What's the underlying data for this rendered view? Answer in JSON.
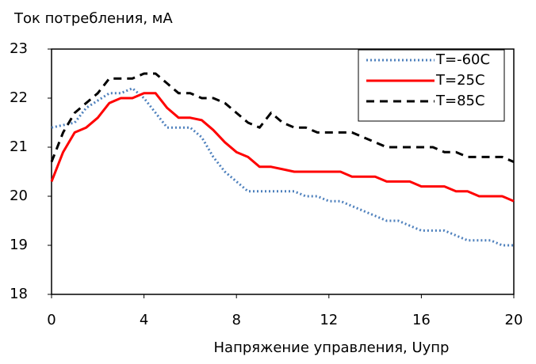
{
  "chart_data": {
    "type": "line",
    "title": "Ток потребления, мА",
    "x_label": "Напряжение управления, Uупр",
    "x": [
      0,
      0.5,
      1,
      1.5,
      2,
      2.5,
      3,
      3.5,
      4,
      4.5,
      5,
      5.5,
      6,
      6.5,
      7,
      7.5,
      8,
      8.5,
      9,
      9.5,
      10,
      10.5,
      11,
      11.5,
      12,
      12.5,
      13,
      13.5,
      14,
      14.5,
      15,
      15.5,
      16,
      16.5,
      17,
      17.5,
      18,
      18.5,
      19,
      19.5,
      20
    ],
    "series": [
      {
        "name": "T=-60C",
        "color": "#4f81bd",
        "dash": "dotted",
        "values": [
          21.4,
          21.45,
          21.5,
          21.8,
          21.95,
          22.1,
          22.1,
          22.2,
          22.0,
          21.7,
          21.4,
          21.4,
          21.4,
          21.2,
          20.8,
          20.5,
          20.3,
          20.1,
          20.1,
          20.1,
          20.1,
          20.1,
          20.0,
          20.0,
          19.9,
          19.9,
          19.8,
          19.7,
          19.6,
          19.5,
          19.5,
          19.4,
          19.3,
          19.3,
          19.3,
          19.2,
          19.1,
          19.1,
          19.1,
          19.0,
          19.0
        ]
      },
      {
        "name": "T=25C",
        "color": "#ff0000",
        "dash": "solid",
        "values": [
          20.3,
          20.9,
          21.3,
          21.4,
          21.6,
          21.9,
          22.0,
          22.0,
          22.1,
          22.1,
          21.8,
          21.6,
          21.6,
          21.55,
          21.35,
          21.1,
          20.9,
          20.8,
          20.6,
          20.6,
          20.55,
          20.5,
          20.5,
          20.5,
          20.5,
          20.5,
          20.4,
          20.4,
          20.4,
          20.3,
          20.3,
          20.3,
          20.2,
          20.2,
          20.2,
          20.1,
          20.1,
          20.0,
          20.0,
          20.0,
          19.9
        ]
      },
      {
        "name": "T=85C",
        "color": "#000000",
        "dash": "dashed",
        "values": [
          20.7,
          21.3,
          21.7,
          21.9,
          22.1,
          22.4,
          22.4,
          22.4,
          22.5,
          22.5,
          22.3,
          22.1,
          22.1,
          22.0,
          22.0,
          21.9,
          21.7,
          21.5,
          21.4,
          21.7,
          21.5,
          21.4,
          21.4,
          21.3,
          21.3,
          21.3,
          21.3,
          21.2,
          21.1,
          21.0,
          21.0,
          21.0,
          21.0,
          21.0,
          20.9,
          20.9,
          20.8,
          20.8,
          20.8,
          20.8,
          20.7
        ]
      }
    ],
    "xlim": [
      0,
      20
    ],
    "xticks": [
      0,
      4,
      8,
      12,
      16,
      20
    ],
    "ylim": [
      18,
      23
    ],
    "yticks": [
      18,
      19,
      20,
      21,
      22,
      23
    ],
    "grid": false,
    "legend": "upper right"
  }
}
